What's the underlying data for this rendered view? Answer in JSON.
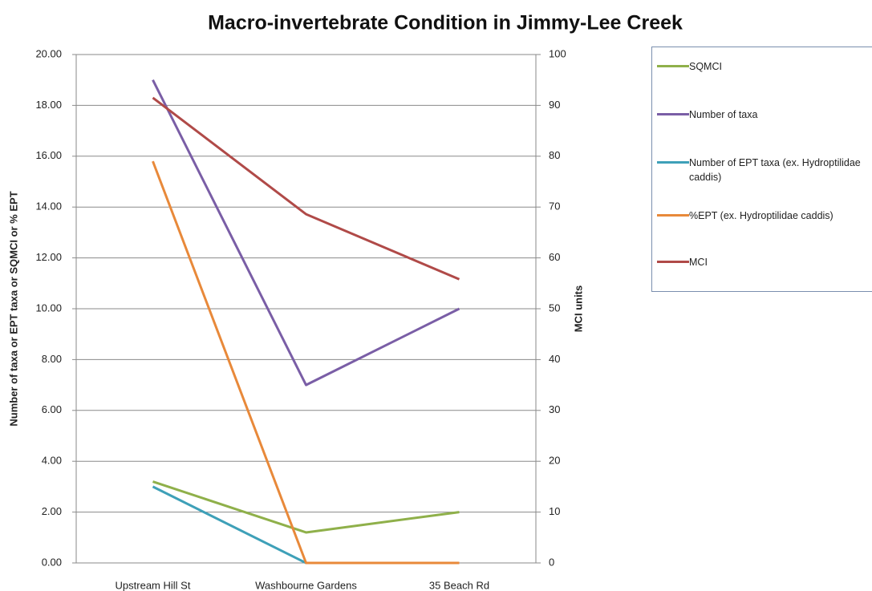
{
  "chart_data": {
    "type": "line",
    "title": "Macro-invertebrate Condition in Jimmy-Lee Creek",
    "y_label": "Number of taxa or EPT taxa or SQMCI or % EPT",
    "y2_label": "MCI units",
    "categories": [
      "Upstream Hill St",
      "Washbourne Gardens",
      "35 Beach Rd"
    ],
    "series": [
      {
        "name": "SQMCI",
        "color": "#8fb04a",
        "values": [
          3.2,
          1.2,
          2.0
        ]
      },
      {
        "name": "Number of taxa",
        "color": "#7a5ea6",
        "values": [
          19,
          7,
          10
        ]
      },
      {
        "name": "Number of EPT taxa (ex. Hydroptilidae caddis)",
        "color": "#3ea0b8",
        "values": [
          3,
          0,
          0
        ]
      },
      {
        "name": "%EPT (ex. Hydroptilidae caddis)",
        "color": "#e8893a",
        "values": [
          15.8,
          0,
          0
        ]
      },
      {
        "name": "MCI",
        "color": "#b04a48",
        "values": [
          91.5,
          68.6,
          55.8
        ],
        "axis": "y2"
      }
    ],
    "ylim": [
      0,
      20
    ],
    "yticks": [
      {
        "value": 0,
        "label": "0.00"
      },
      {
        "value": 2,
        "label": "2.00"
      },
      {
        "value": 4,
        "label": "4.00"
      },
      {
        "value": 6,
        "label": "6.00"
      },
      {
        "value": 8,
        "label": "8.00"
      },
      {
        "value": 10,
        "label": "10.00"
      },
      {
        "value": 12,
        "label": "12.00"
      },
      {
        "value": 14,
        "label": "14.00"
      },
      {
        "value": 16,
        "label": "16.00"
      },
      {
        "value": 18,
        "label": "18.00"
      },
      {
        "value": 20,
        "label": "20.00"
      }
    ],
    "y2lim": [
      0,
      100
    ],
    "y2ticks": [
      0,
      10,
      20,
      30,
      40,
      50,
      60,
      70,
      80,
      90,
      100
    ],
    "grid": true,
    "legend": "right"
  }
}
